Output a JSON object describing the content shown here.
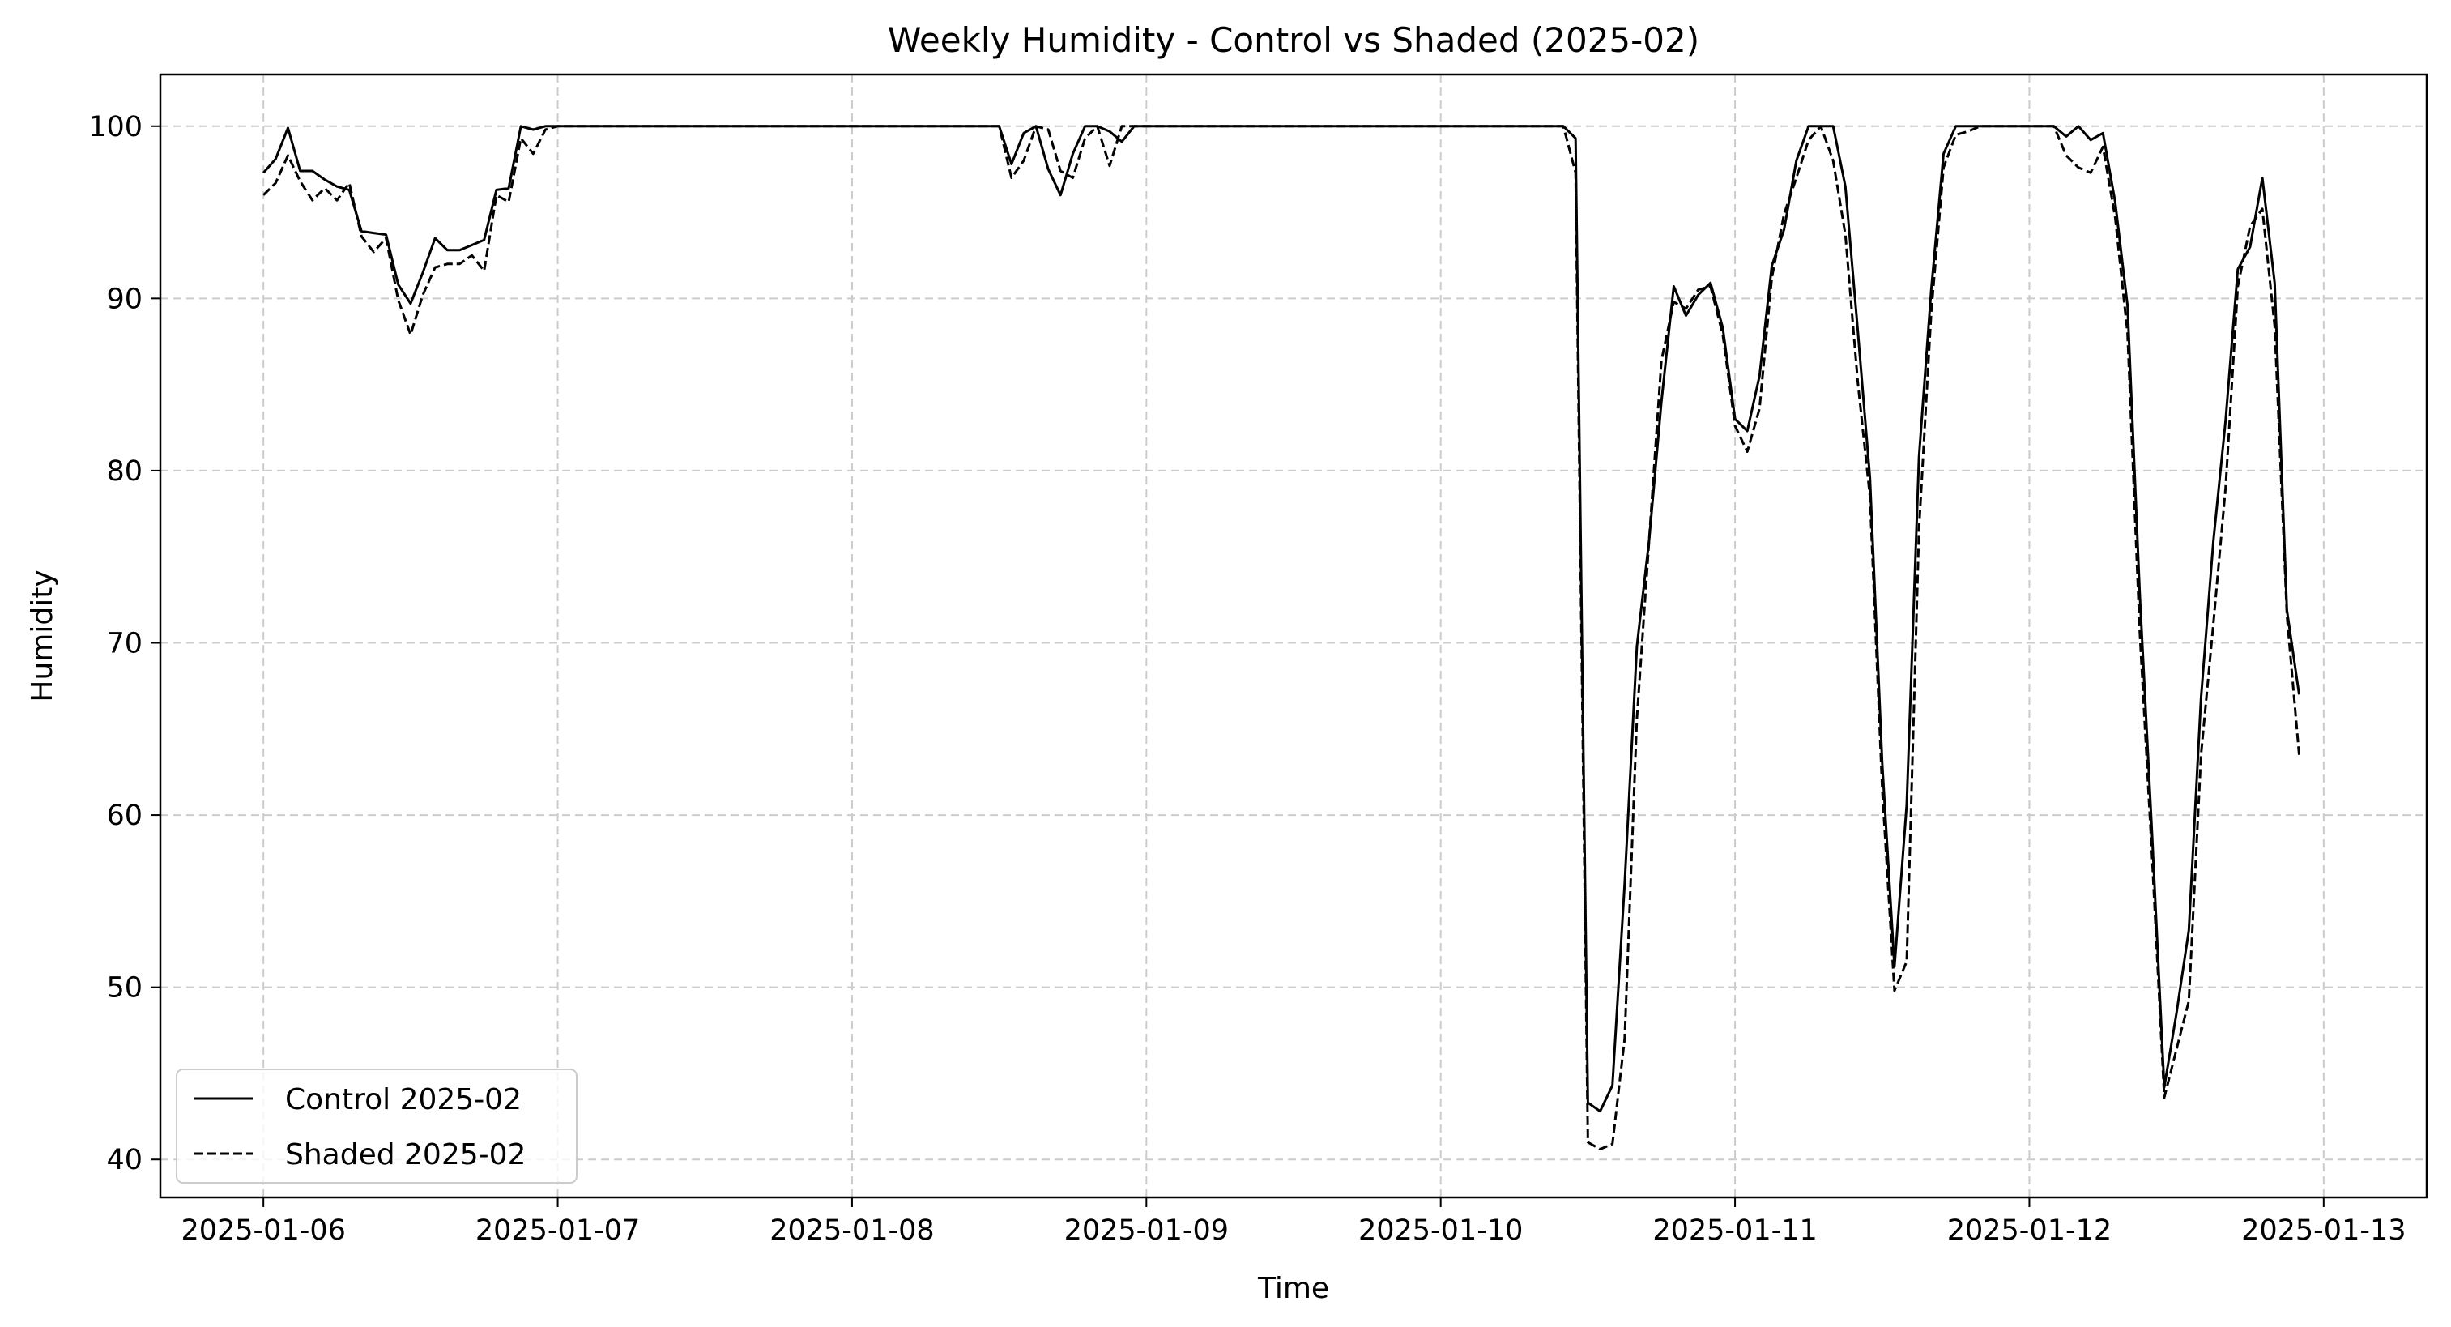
{
  "chart_data": {
    "type": "line",
    "title": "Weekly Humidity - Control vs Shaded (2025-02)",
    "xlabel": "Time",
    "ylabel": "Humidity",
    "x_is_date": true,
    "xlim": [
      "2025-01-05T15:36",
      "2025-01-13T08:24"
    ],
    "ylim": [
      37.8,
      103.0
    ],
    "x_ticks": [
      "2025-01-06",
      "2025-01-07",
      "2025-01-08",
      "2025-01-09",
      "2025-01-10",
      "2025-01-11",
      "2025-01-12",
      "2025-01-13"
    ],
    "y_ticks": [
      40,
      50,
      60,
      70,
      80,
      90,
      100
    ],
    "grid": true,
    "legend_position": "lower-left",
    "series": [
      {
        "name": "Control 2025-02",
        "style": "solid",
        "color": "#000000",
        "points": [
          [
            "2025-01-06T00:00",
            97.3
          ],
          [
            "2025-01-06T01:00",
            98.1
          ],
          [
            "2025-01-06T02:00",
            99.9
          ],
          [
            "2025-01-06T03:00",
            97.4
          ],
          [
            "2025-01-06T04:00",
            97.4
          ],
          [
            "2025-01-06T05:00",
            96.9
          ],
          [
            "2025-01-06T06:00",
            96.5
          ],
          [
            "2025-01-06T07:00",
            96.3
          ],
          [
            "2025-01-06T08:00",
            93.9
          ],
          [
            "2025-01-06T09:00",
            93.8
          ],
          [
            "2025-01-06T10:00",
            93.7
          ],
          [
            "2025-01-06T11:00",
            90.8
          ],
          [
            "2025-01-06T12:00",
            89.7
          ],
          [
            "2025-01-06T13:00",
            91.5
          ],
          [
            "2025-01-06T14:00",
            93.5
          ],
          [
            "2025-01-06T15:00",
            92.8
          ],
          [
            "2025-01-06T16:00",
            92.8
          ],
          [
            "2025-01-06T17:00",
            93.1
          ],
          [
            "2025-01-06T18:00",
            93.4
          ],
          [
            "2025-01-06T19:00",
            96.3
          ],
          [
            "2025-01-06T20:00",
            96.4
          ],
          [
            "2025-01-06T21:00",
            100
          ],
          [
            "2025-01-06T22:00",
            99.8
          ],
          [
            "2025-01-06T23:00",
            100
          ],
          [
            "2025-01-07T00:00",
            100
          ],
          [
            "2025-01-08T00:00",
            100
          ],
          [
            "2025-01-08T12:00",
            100
          ],
          [
            "2025-01-08T13:00",
            97.8
          ],
          [
            "2025-01-08T14:00",
            99.6
          ],
          [
            "2025-01-08T15:00",
            100
          ],
          [
            "2025-01-08T16:00",
            97.5
          ],
          [
            "2025-01-08T17:00",
            96.0
          ],
          [
            "2025-01-08T18:00",
            98.4
          ],
          [
            "2025-01-08T19:00",
            100
          ],
          [
            "2025-01-08T20:00",
            100
          ],
          [
            "2025-01-08T21:00",
            99.7
          ],
          [
            "2025-01-08T22:00",
            99.1
          ],
          [
            "2025-01-08T23:00",
            100
          ],
          [
            "2025-01-09T00:00",
            100
          ],
          [
            "2025-01-10T00:00",
            100
          ],
          [
            "2025-01-10T10:00",
            100
          ],
          [
            "2025-01-10T11:00",
            99.3
          ],
          [
            "2025-01-10T12:00",
            43.3
          ],
          [
            "2025-01-10T13:00",
            42.8
          ],
          [
            "2025-01-10T14:00",
            44.3
          ],
          [
            "2025-01-10T15:00",
            56.0
          ],
          [
            "2025-01-10T16:00",
            69.8
          ],
          [
            "2025-01-10T17:00",
            76.0
          ],
          [
            "2025-01-10T18:00",
            84.0
          ],
          [
            "2025-01-10T19:00",
            90.7
          ],
          [
            "2025-01-10T20:00",
            89.0
          ],
          [
            "2025-01-10T21:00",
            90.2
          ],
          [
            "2025-01-10T22:00",
            90.9
          ],
          [
            "2025-01-10T23:00",
            88.3
          ],
          [
            "2025-01-11T00:00",
            83.0
          ],
          [
            "2025-01-11T01:00",
            82.3
          ],
          [
            "2025-01-11T02:00",
            85.5
          ],
          [
            "2025-01-11T03:00",
            91.9
          ],
          [
            "2025-01-11T04:00",
            94.0
          ],
          [
            "2025-01-11T05:00",
            98.0
          ],
          [
            "2025-01-11T06:00",
            100
          ],
          [
            "2025-01-11T07:00",
            100
          ],
          [
            "2025-01-11T08:00",
            100
          ],
          [
            "2025-01-11T09:00",
            96.5
          ],
          [
            "2025-01-11T10:00",
            88.2
          ],
          [
            "2025-01-11T11:00",
            79.6
          ],
          [
            "2025-01-11T12:00",
            63.0
          ],
          [
            "2025-01-11T13:00",
            51.2
          ],
          [
            "2025-01-11T14:00",
            60.6
          ],
          [
            "2025-01-11T15:00",
            80.8
          ],
          [
            "2025-01-11T16:00",
            90.5
          ],
          [
            "2025-01-11T17:00",
            98.4
          ],
          [
            "2025-01-11T18:00",
            100
          ],
          [
            "2025-01-11T19:00",
            100
          ],
          [
            "2025-01-11T20:00",
            100
          ],
          [
            "2025-01-11T21:00",
            100
          ],
          [
            "2025-01-11T22:00",
            100
          ],
          [
            "2025-01-11T23:00",
            100
          ],
          [
            "2025-01-12T00:00",
            100
          ],
          [
            "2025-01-12T01:00",
            100
          ],
          [
            "2025-01-12T02:00",
            100
          ],
          [
            "2025-01-12T03:00",
            99.4
          ],
          [
            "2025-01-12T04:00",
            100
          ],
          [
            "2025-01-12T05:00",
            99.2
          ],
          [
            "2025-01-12T06:00",
            99.6
          ],
          [
            "2025-01-12T07:00",
            95.6
          ],
          [
            "2025-01-12T08:00",
            89.6
          ],
          [
            "2025-01-12T09:00",
            72.9
          ],
          [
            "2025-01-12T10:00",
            59.0
          ],
          [
            "2025-01-12T11:00",
            44.2
          ],
          [
            "2025-01-12T12:00",
            48.5
          ],
          [
            "2025-01-12T13:00",
            53.3
          ],
          [
            "2025-01-12T14:00",
            66.8
          ],
          [
            "2025-01-12T15:00",
            75.9
          ],
          [
            "2025-01-12T16:00",
            82.9
          ],
          [
            "2025-01-12T17:00",
            91.7
          ],
          [
            "2025-01-12T18:00",
            93.0
          ],
          [
            "2025-01-12T19:00",
            97.0
          ],
          [
            "2025-01-12T20:00",
            90.9
          ],
          [
            "2025-01-12T21:00",
            71.9
          ],
          [
            "2025-01-12T22:00",
            67.0
          ]
        ]
      },
      {
        "name": "Shaded 2025-02",
        "style": "dashed",
        "color": "#000000",
        "points": [
          [
            "2025-01-06T00:00",
            96.0
          ],
          [
            "2025-01-06T01:00",
            96.7
          ],
          [
            "2025-01-06T02:00",
            98.3
          ],
          [
            "2025-01-06T03:00",
            96.8
          ],
          [
            "2025-01-06T04:00",
            95.7
          ],
          [
            "2025-01-06T05:00",
            96.4
          ],
          [
            "2025-01-06T06:00",
            95.7
          ],
          [
            "2025-01-06T07:00",
            96.7
          ],
          [
            "2025-01-06T08:00",
            93.6
          ],
          [
            "2025-01-06T09:00",
            92.7
          ],
          [
            "2025-01-06T10:00",
            93.5
          ],
          [
            "2025-01-06T11:00",
            89.9
          ],
          [
            "2025-01-06T12:00",
            87.9
          ],
          [
            "2025-01-06T13:00",
            90.2
          ],
          [
            "2025-01-06T14:00",
            91.8
          ],
          [
            "2025-01-06T15:00",
            92.0
          ],
          [
            "2025-01-06T16:00",
            92.0
          ],
          [
            "2025-01-06T17:00",
            92.5
          ],
          [
            "2025-01-06T18:00",
            91.6
          ],
          [
            "2025-01-06T19:00",
            96.0
          ],
          [
            "2025-01-06T20:00",
            95.6
          ],
          [
            "2025-01-06T21:00",
            99.3
          ],
          [
            "2025-01-06T22:00",
            98.4
          ],
          [
            "2025-01-06T23:00",
            99.8
          ],
          [
            "2025-01-07T00:00",
            100
          ],
          [
            "2025-01-08T00:00",
            100
          ],
          [
            "2025-01-08T12:00",
            100
          ],
          [
            "2025-01-08T13:00",
            97.0
          ],
          [
            "2025-01-08T14:00",
            98.0
          ],
          [
            "2025-01-08T15:00",
            100
          ],
          [
            "2025-01-08T16:00",
            99.8
          ],
          [
            "2025-01-08T17:00",
            97.4
          ],
          [
            "2025-01-08T18:00",
            97.0
          ],
          [
            "2025-01-08T19:00",
            99.3
          ],
          [
            "2025-01-08T20:00",
            100
          ],
          [
            "2025-01-08T21:00",
            97.7
          ],
          [
            "2025-01-08T22:00",
            100
          ],
          [
            "2025-01-08T23:00",
            100
          ],
          [
            "2025-01-09T00:00",
            100
          ],
          [
            "2025-01-10T00:00",
            100
          ],
          [
            "2025-01-10T10:00",
            100
          ],
          [
            "2025-01-10T11:00",
            97.3
          ],
          [
            "2025-01-10T12:00",
            41.0
          ],
          [
            "2025-01-10T13:00",
            40.6
          ],
          [
            "2025-01-10T14:00",
            40.9
          ],
          [
            "2025-01-10T15:00",
            47.0
          ],
          [
            "2025-01-10T16:00",
            65.6
          ],
          [
            "2025-01-10T17:00",
            76.0
          ],
          [
            "2025-01-10T18:00",
            86.4
          ],
          [
            "2025-01-10T19:00",
            89.8
          ],
          [
            "2025-01-10T20:00",
            89.4
          ],
          [
            "2025-01-10T21:00",
            90.5
          ],
          [
            "2025-01-10T22:00",
            90.7
          ],
          [
            "2025-01-10T23:00",
            87.9
          ],
          [
            "2025-01-11T00:00",
            82.6
          ],
          [
            "2025-01-11T01:00",
            81.1
          ],
          [
            "2025-01-11T02:00",
            83.6
          ],
          [
            "2025-01-11T03:00",
            91.2
          ],
          [
            "2025-01-11T04:00",
            94.9
          ],
          [
            "2025-01-11T05:00",
            97.0
          ],
          [
            "2025-01-11T06:00",
            99.2
          ],
          [
            "2025-01-11T07:00",
            100
          ],
          [
            "2025-01-11T08:00",
            98.0
          ],
          [
            "2025-01-11T09:00",
            93.7
          ],
          [
            "2025-01-11T10:00",
            85.2
          ],
          [
            "2025-01-11T11:00",
            78.5
          ],
          [
            "2025-01-11T12:00",
            61.5
          ],
          [
            "2025-01-11T13:00",
            49.8
          ],
          [
            "2025-01-11T14:00",
            51.5
          ],
          [
            "2025-01-11T15:00",
            76.6
          ],
          [
            "2025-01-11T16:00",
            89.2
          ],
          [
            "2025-01-11T17:00",
            97.6
          ],
          [
            "2025-01-11T18:00",
            99.5
          ],
          [
            "2025-01-11T19:00",
            99.7
          ],
          [
            "2025-01-11T20:00",
            100
          ],
          [
            "2025-01-11T21:00",
            100
          ],
          [
            "2025-01-11T22:00",
            100
          ],
          [
            "2025-01-11T23:00",
            100
          ],
          [
            "2025-01-12T00:00",
            100
          ],
          [
            "2025-01-12T01:00",
            100
          ],
          [
            "2025-01-12T02:00",
            100
          ],
          [
            "2025-01-12T03:00",
            98.3
          ],
          [
            "2025-01-12T04:00",
            97.6
          ],
          [
            "2025-01-12T05:00",
            97.3
          ],
          [
            "2025-01-12T06:00",
            98.8
          ],
          [
            "2025-01-12T07:00",
            94.7
          ],
          [
            "2025-01-12T08:00",
            88.0
          ],
          [
            "2025-01-12T09:00",
            70.7
          ],
          [
            "2025-01-12T10:00",
            57.7
          ],
          [
            "2025-01-12T11:00",
            43.6
          ],
          [
            "2025-01-12T12:00",
            46.4
          ],
          [
            "2025-01-12T13:00",
            49.2
          ],
          [
            "2025-01-12T14:00",
            63.5
          ],
          [
            "2025-01-12T15:00",
            71.1
          ],
          [
            "2025-01-12T16:00",
            79.0
          ],
          [
            "2025-01-12T17:00",
            90.7
          ],
          [
            "2025-01-12T18:00",
            94.2
          ],
          [
            "2025-01-12T19:00",
            95.2
          ],
          [
            "2025-01-12T20:00",
            88.4
          ],
          [
            "2025-01-12T21:00",
            71.6
          ],
          [
            "2025-01-12T22:00",
            63.5
          ]
        ]
      }
    ]
  }
}
